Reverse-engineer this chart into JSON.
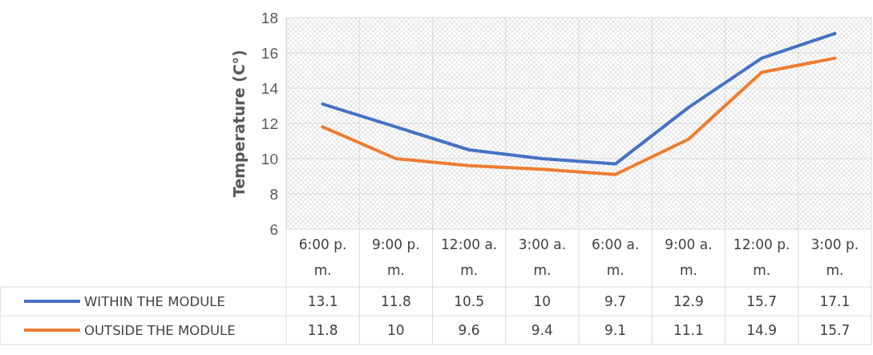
{
  "chart_data": {
    "type": "line",
    "ylabel": "Temperature (C°)",
    "categories": [
      "6:00 p. m.",
      "9:00 p. m.",
      "12:00 a. m.",
      "3:00 a. m.",
      "6:00 a. m.",
      "9:00 a. m.",
      "12:00 p. m.",
      "3:00 p. m."
    ],
    "series": [
      {
        "name": "WITHIN THE MODULE",
        "color": "#4472c4",
        "values": [
          13.1,
          11.8,
          10.5,
          10,
          9.7,
          12.9,
          15.7,
          17.1
        ]
      },
      {
        "name": "OUTSIDE THE MODULE",
        "color": "#ed7d31",
        "values": [
          11.8,
          10,
          9.6,
          9.4,
          9.1,
          11.1,
          14.9,
          15.7
        ]
      }
    ],
    "ylim": [
      6,
      18
    ],
    "yticks": [
      6,
      8,
      10,
      12,
      14,
      16,
      18
    ],
    "grid": true,
    "data_labels": true,
    "legend": "bottom",
    "marker": "none",
    "line_style": "solid"
  }
}
